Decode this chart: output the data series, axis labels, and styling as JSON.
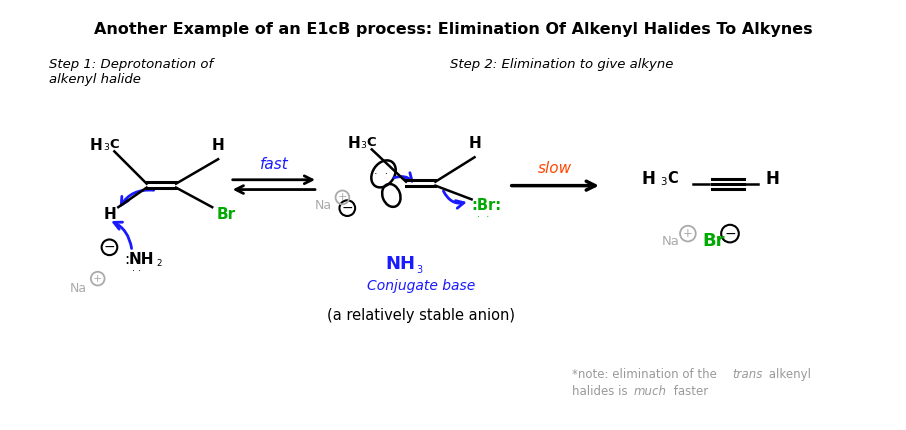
{
  "title": "Another Example of an E1cB process: Elimination Of Alkenyl Halides To Alkynes",
  "step1_label": "Step 1: Deprotonation of\nalkenyl halide",
  "step2_label": "Step 2: Elimination to give alkyne",
  "fast_label": "fast",
  "slow_label": "slow",
  "conjugate_base": "Conjugate base",
  "nh3": "NH",
  "stable_anion": "(a relatively stable anion)",
  "bg_color": "#ffffff",
  "black": "#000000",
  "blue": "#1a1aff",
  "green": "#00aa00",
  "orange_red": "#ff4500",
  "gray": "#aaaaaa",
  "dark_gray": "#999999"
}
